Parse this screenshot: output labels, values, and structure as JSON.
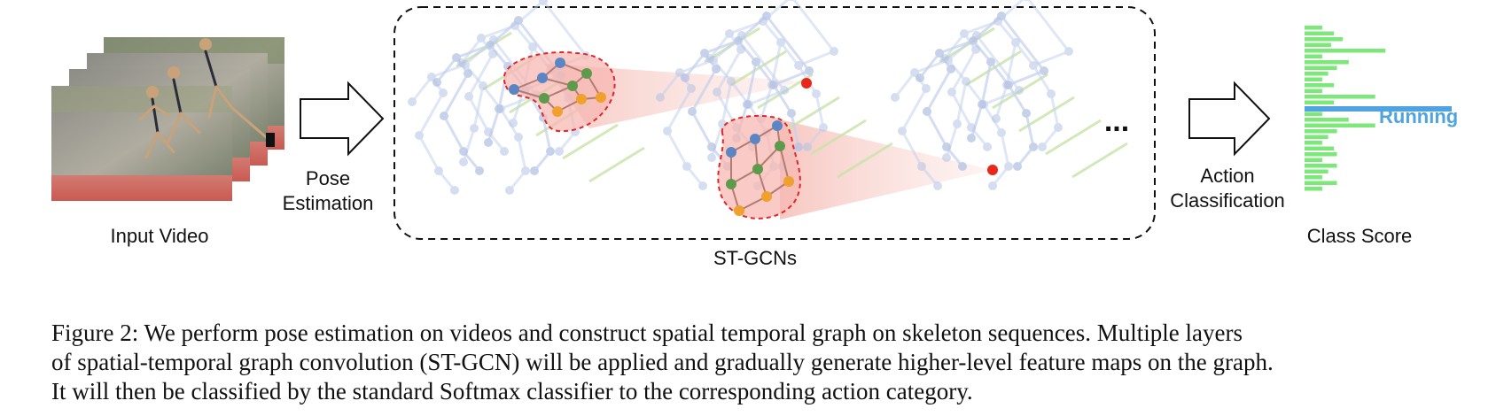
{
  "labels": {
    "input_video": "Input Video",
    "pose_line1": "Pose",
    "pose_line2": "Estimation",
    "stgcn": "ST-GCNs",
    "ellipsis": "...",
    "action_line1": "Action",
    "action_line2": "Classification",
    "class_score": "Class Score",
    "running": "Running"
  },
  "colors": {
    "blue_node": "#5b86c3",
    "green_node": "#5e9a4b",
    "orange_node": "#f0a02c",
    "red_node": "#e8261c",
    "faint_node": "#b4c2e4",
    "bar_green": "#7ce87a",
    "bar_highlight": "#4fa3e0",
    "region_fill": "#f7b8b3",
    "region_border": "#e0262a"
  },
  "icons": [
    "input-video-frames",
    "pose-estimation-arrow",
    "action-classification-arrow",
    "skeleton-graph"
  ],
  "class_scores": [
    0.12,
    0.2,
    0.26,
    0.18,
    0.55,
    0.12,
    0.3,
    0.22,
    0.16,
    0.12,
    0.2,
    0.12,
    0.48,
    0.2,
    1.0,
    0.12,
    0.3,
    0.48,
    0.22,
    0.16,
    0.12,
    0.2,
    0.22,
    0.12,
    0.22,
    0.16,
    0.12,
    0.22,
    0.12
  ],
  "highlight_index": 14,
  "caption": {
    "line1": "Figure 2:  We perform pose estimation on videos and construct spatial temporal graph on skeleton sequences. Multiple layers",
    "line2": "of spatial-temporal graph convolution (ST-GCN) will be applied and gradually generate higher-level feature maps on the graph.",
    "line3": "It will then be classified by the standard Softmax classifier to the corresponding action category."
  }
}
